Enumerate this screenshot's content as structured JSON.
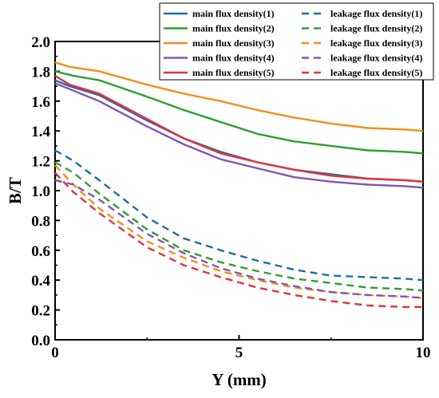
{
  "chart_data": {
    "type": "line",
    "title": "",
    "xlabel": "Y (mm)",
    "ylabel": "B/T",
    "xlim": [
      0,
      10
    ],
    "ylim": [
      0,
      2.0
    ],
    "x_ticks": [
      "0",
      "5",
      "10"
    ],
    "y_ticks": [
      "0.0",
      "0.2",
      "0.4",
      "0.6",
      "0.8",
      "1.0",
      "1.2",
      "1.4",
      "1.6",
      "1.8",
      "2.0"
    ],
    "grid": false,
    "legend_position": "top-right",
    "series": [
      {
        "name": "main flux density(1)",
        "color": "#1f6f9f",
        "style": "solid",
        "x": [
          0,
          0.4,
          1.2,
          2.5,
          3.5,
          4.5,
          5.5,
          6.5,
          7.5,
          8.5,
          9.5,
          10
        ],
        "y": [
          1.74,
          1.7,
          1.64,
          1.47,
          1.35,
          1.26,
          1.19,
          1.14,
          1.11,
          1.08,
          1.07,
          1.06
        ]
      },
      {
        "name": "main flux density(2)",
        "color": "#2ca02c",
        "style": "solid",
        "x": [
          0,
          0.5,
          1.2,
          2.5,
          3.5,
          4.5,
          5.5,
          6.5,
          7.5,
          8.5,
          9.5,
          10
        ],
        "y": [
          1.8,
          1.77,
          1.74,
          1.63,
          1.54,
          1.46,
          1.38,
          1.33,
          1.3,
          1.27,
          1.26,
          1.25
        ]
      },
      {
        "name": "main flux density(3)",
        "color": "#f28e1c",
        "style": "solid",
        "x": [
          0,
          0.4,
          1.2,
          2.5,
          3.5,
          4.5,
          5.5,
          6.5,
          7.5,
          8.5,
          9.5,
          10
        ],
        "y": [
          1.86,
          1.83,
          1.8,
          1.71,
          1.65,
          1.6,
          1.54,
          1.49,
          1.45,
          1.42,
          1.41,
          1.4
        ]
      },
      {
        "name": "main flux density(4)",
        "color": "#8155b5",
        "style": "solid",
        "x": [
          0,
          0.5,
          1.2,
          2.5,
          3.5,
          4.5,
          5.5,
          6.5,
          7.5,
          8.5,
          9.5,
          10
        ],
        "y": [
          1.72,
          1.67,
          1.6,
          1.43,
          1.31,
          1.21,
          1.15,
          1.09,
          1.06,
          1.04,
          1.03,
          1.02
        ]
      },
      {
        "name": "main flux density(5)",
        "color": "#e8303c",
        "style": "solid",
        "x": [
          0,
          0.4,
          1.2,
          2.5,
          3.5,
          4.5,
          5.5,
          6.5,
          7.5,
          8.5,
          9.5,
          10
        ],
        "y": [
          1.77,
          1.71,
          1.65,
          1.48,
          1.35,
          1.25,
          1.19,
          1.14,
          1.1,
          1.08,
          1.07,
          1.06
        ]
      },
      {
        "name": "leakage flux density(1)",
        "color": "#1f6f9f",
        "style": "dashed",
        "x": [
          0,
          0.5,
          1.2,
          2.5,
          3.5,
          4.5,
          5.5,
          6.5,
          7.5,
          8.5,
          9.5,
          10
        ],
        "y": [
          1.27,
          1.2,
          1.07,
          0.82,
          0.68,
          0.6,
          0.53,
          0.47,
          0.43,
          0.42,
          0.41,
          0.4
        ]
      },
      {
        "name": "leakage flux density(2)",
        "color": "#2ca02c",
        "style": "dashed",
        "x": [
          0,
          0.5,
          1.2,
          2.5,
          3.5,
          4.5,
          5.5,
          6.5,
          7.5,
          8.5,
          9.5,
          10
        ],
        "y": [
          1.19,
          1.12,
          0.98,
          0.74,
          0.6,
          0.52,
          0.46,
          0.41,
          0.38,
          0.35,
          0.34,
          0.33
        ]
      },
      {
        "name": "leakage flux density(3)",
        "color": "#f28e1c",
        "style": "dashed",
        "x": [
          0,
          0.5,
          1.2,
          2.5,
          3.5,
          4.5,
          5.5,
          6.5,
          7.5,
          8.5,
          9.5,
          10
        ],
        "y": [
          1.17,
          1.04,
          0.88,
          0.66,
          0.55,
          0.46,
          0.4,
          0.35,
          0.32,
          0.3,
          0.29,
          0.28
        ]
      },
      {
        "name": "leakage flux density(4)",
        "color": "#8155b5",
        "style": "dashed",
        "x": [
          0,
          0.5,
          1.2,
          2.5,
          3.5,
          4.5,
          5.5,
          6.5,
          7.5,
          8.5,
          9.5,
          10
        ],
        "y": [
          1.07,
          1.04,
          0.94,
          0.71,
          0.58,
          0.48,
          0.41,
          0.36,
          0.32,
          0.3,
          0.29,
          0.28
        ]
      },
      {
        "name": "leakage flux density(5)",
        "color": "#e8303c",
        "style": "dashed",
        "x": [
          0,
          0.5,
          1.2,
          2.5,
          3.5,
          4.5,
          5.5,
          6.5,
          7.5,
          8.5,
          9.5,
          10
        ],
        "y": [
          1.12,
          0.99,
          0.85,
          0.62,
          0.5,
          0.42,
          0.35,
          0.3,
          0.26,
          0.23,
          0.22,
          0.22
        ]
      }
    ]
  }
}
